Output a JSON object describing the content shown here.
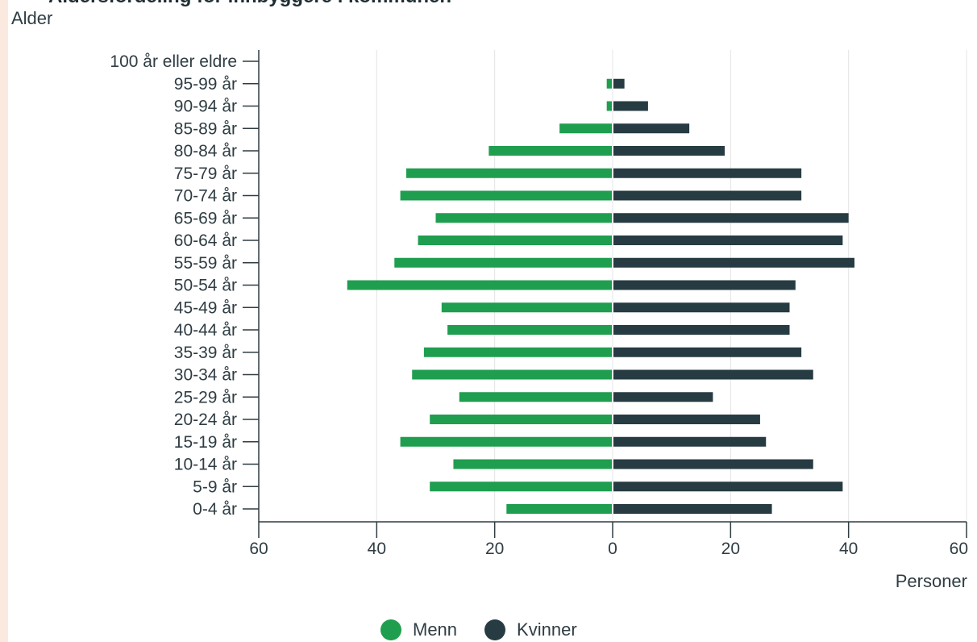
{
  "colors": {
    "menn": "#1f9e4f",
    "kvinner": "#263b42",
    "axis": "#2f3d43",
    "grid": "#e4e4e4"
  },
  "header": {
    "title_partial": "Aldersfordeling for innbyggere i kommunen"
  },
  "chart_data": {
    "type": "bar",
    "orientation": "horizontal",
    "variant": "population-pyramid",
    "ylabel": "Alder",
    "xlabel": "Personer",
    "xlim": [
      -60,
      60
    ],
    "x_ticks": [
      {
        "value": -60,
        "label": "60"
      },
      {
        "value": -40,
        "label": "40"
      },
      {
        "value": -20,
        "label": "20"
      },
      {
        "value": 0,
        "label": "0"
      },
      {
        "value": 20,
        "label": "20"
      },
      {
        "value": 40,
        "label": "40"
      },
      {
        "value": 60,
        "label": "60"
      }
    ],
    "grid": "vertical",
    "legend_position": "bottom",
    "categories": [
      "100 år eller eldre",
      "95-99 år",
      "90-94 år",
      "85-89 år",
      "80-84 år",
      "75-79 år",
      "70-74 år",
      "65-69 år",
      "60-64 år",
      "55-59 år",
      "50-54 år",
      "45-49 år",
      "40-44 år",
      "35-39 år",
      "30-34 år",
      "25-29 år",
      "20-24 år",
      "15-19 år",
      "10-14 år",
      "5-9 år",
      "0-4 år"
    ],
    "series": [
      {
        "name": "Menn",
        "values": [
          0,
          1,
          1,
          9,
          21,
          35,
          36,
          30,
          33,
          37,
          45,
          29,
          28,
          32,
          34,
          26,
          31,
          36,
          27,
          31,
          18
        ]
      },
      {
        "name": "Kvinner",
        "values": [
          0,
          2,
          6,
          13,
          19,
          32,
          32,
          40,
          39,
          41,
          31,
          30,
          30,
          32,
          34,
          17,
          25,
          26,
          34,
          39,
          27
        ]
      }
    ]
  }
}
